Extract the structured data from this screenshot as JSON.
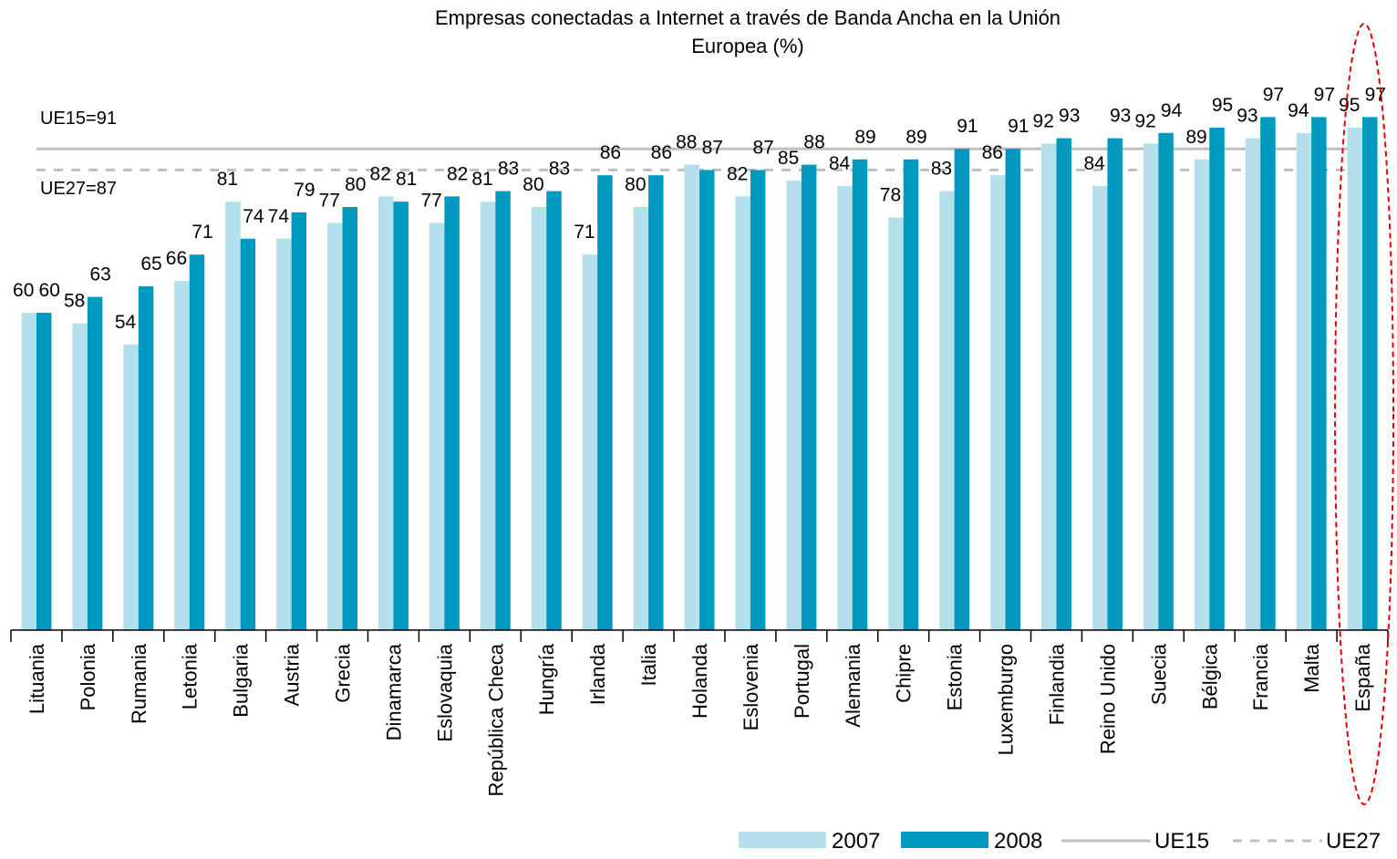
{
  "chart_data": {
    "type": "bar",
    "title": "Empresas conectadas a Internet  a través de Banda Ancha en la Unión Europea (%)",
    "title_lines": [
      "Empresas conectadas a Internet  a través de Banda Ancha en la Unión",
      "Europea (%)"
    ],
    "xlabel": "",
    "ylabel": "",
    "ylim": [
      0,
      100
    ],
    "grid": false,
    "legend_position": "bottom-right",
    "categories": [
      "Lituania",
      "Polonia",
      "Rumania",
      "Letonia",
      "Bulgaria",
      "Austria",
      "Grecia",
      "Dinamarca",
      "Eslovaquia",
      "República Checa",
      "Hungría",
      "Irlanda",
      "Italia",
      "Holanda",
      "Eslovenia",
      "Portugal",
      "Alemania",
      "Chipre",
      "Estonia",
      "Luxemburgo",
      "Finlandia",
      "Reino Unido",
      "Suecia",
      "Bélgica",
      "Francia",
      "Malta",
      "España"
    ],
    "series": [
      {
        "name": "2007",
        "color": "#b3e0ea",
        "values": [
          60,
          58,
          54,
          66,
          81,
          74,
          77,
          82,
          77,
          81,
          80,
          71,
          80,
          88,
          82,
          85,
          84,
          78,
          83,
          86,
          92,
          84,
          92,
          89,
          93,
          94,
          95
        ]
      },
      {
        "name": "2008",
        "color": "#0099bf",
        "values": [
          60,
          63,
          65,
          71,
          74,
          79,
          80,
          81,
          82,
          83,
          83,
          86,
          86,
          87,
          87,
          88,
          89,
          89,
          91,
          91,
          93,
          93,
          94,
          95,
          97,
          97,
          97
        ]
      }
    ],
    "reference_lines": [
      {
        "name": "UE15",
        "value": 91,
        "label": "UE15=91",
        "style": "solid",
        "color": "#bfbfbf"
      },
      {
        "name": "UE27",
        "value": 87,
        "label": "UE27=87",
        "style": "dashed",
        "color": "#bfbfbf"
      }
    ],
    "highlight": {
      "category": "España",
      "shape": "dashed ellipse",
      "color": "#e00000"
    },
    "legend": [
      "2007",
      "2008",
      "UE15",
      "UE27"
    ]
  }
}
